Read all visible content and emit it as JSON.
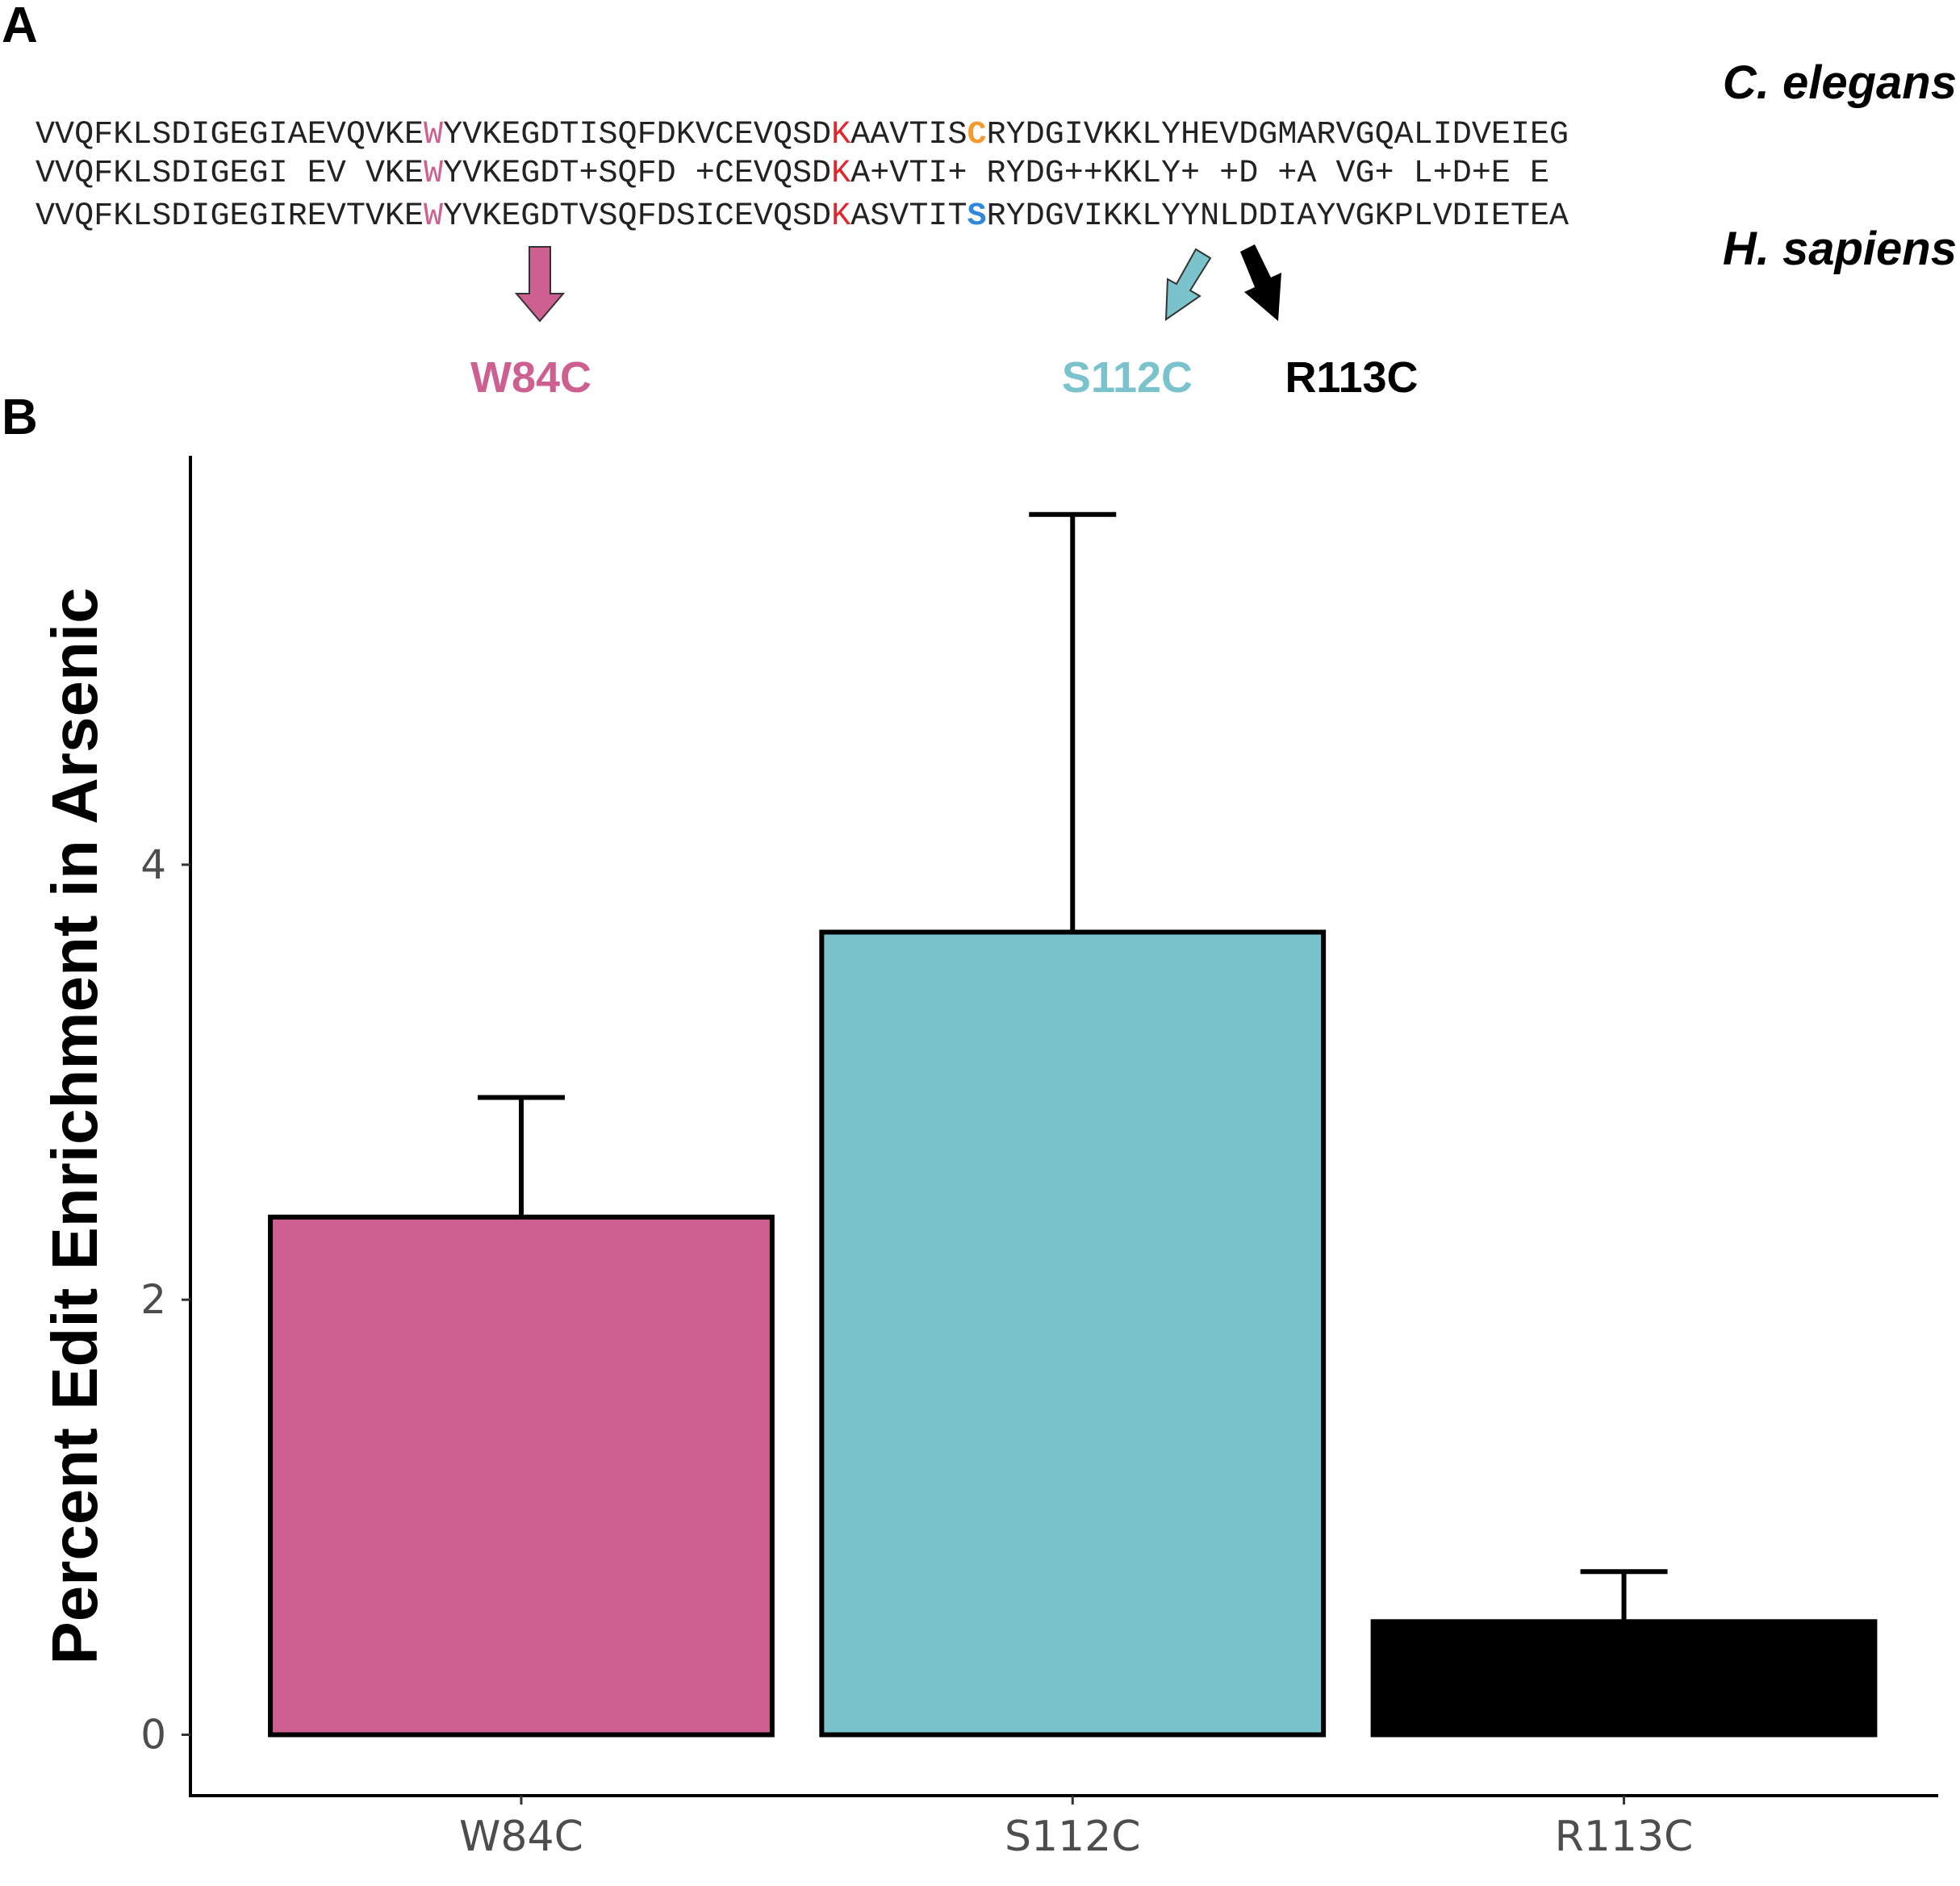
{
  "panels": {
    "a": "A",
    "b": "B"
  },
  "alignment": {
    "species_top": "C. elegans",
    "species_bottom": "H. sapiens",
    "rows": [
      {
        "name": "celegans",
        "segments": [
          {
            "text": "VVQFKLSDIGEGIAEVQVKE",
            "color": "#222222"
          },
          {
            "text": "W",
            "color": "#cd6090"
          },
          {
            "text": "YVKEGDTISQFDKVCEVQSD",
            "color": "#222222"
          },
          {
            "text": "K",
            "color": "#e3262b"
          },
          {
            "text": "AAVTIS",
            "color": "#222222"
          },
          {
            "text": "C",
            "color": "#f39b2e",
            "bold": true
          },
          {
            "text": "RYDGIVKKLYHEVDGMARVGQALIDVEIEG",
            "color": "#222222"
          }
        ]
      },
      {
        "name": "consensus",
        "segments": [
          {
            "text": "VVQFKLSDIGEGI EV VKE",
            "color": "#222222"
          },
          {
            "text": "W",
            "color": "#cd6090"
          },
          {
            "text": "YVKEGDT+SQFD +CEVQSD",
            "color": "#222222"
          },
          {
            "text": "K",
            "color": "#e3262b"
          },
          {
            "text": "A+VTI+ RYDG++KKLY+ +D +A VG+ L+D+E E",
            "color": "#222222"
          }
        ]
      },
      {
        "name": "hsapiens",
        "segments": [
          {
            "text": "VVQFKLSDIGEGIREVTVKE",
            "color": "#222222"
          },
          {
            "text": "W",
            "color": "#cd6090"
          },
          {
            "text": "YVKEGDTVSQFDSICEVQSD",
            "color": "#222222"
          },
          {
            "text": "K",
            "color": "#e3262b"
          },
          {
            "text": "ASVTIT",
            "color": "#222222"
          },
          {
            "text": "S",
            "color": "#2f88dc",
            "bold": true
          },
          {
            "text": "RYDGVIKKLYYNLDDIAYVGKPLVDIETEA",
            "color": "#222222"
          }
        ]
      }
    ],
    "markers": [
      {
        "label": "W84C",
        "color": "#cd6090"
      },
      {
        "label": "S112C",
        "color": "#7bc3cc"
      },
      {
        "label": "R113C",
        "color": "#000000"
      }
    ]
  },
  "chart_data": {
    "type": "bar",
    "categories": [
      "W84C",
      "S112C",
      "R113C"
    ],
    "values": [
      2.38,
      3.69,
      0.52
    ],
    "error_upper": [
      2.93,
      5.61,
      0.75
    ],
    "colors": [
      "#cd6090",
      "#7bc3cc",
      "#000000"
    ],
    "ylabel": "Percent Edit Enrichment in Arsenic",
    "yticks": [
      0,
      2,
      4
    ],
    "ylim": [
      -0.28,
      5.88
    ],
    "grid": false,
    "legend": "none"
  }
}
